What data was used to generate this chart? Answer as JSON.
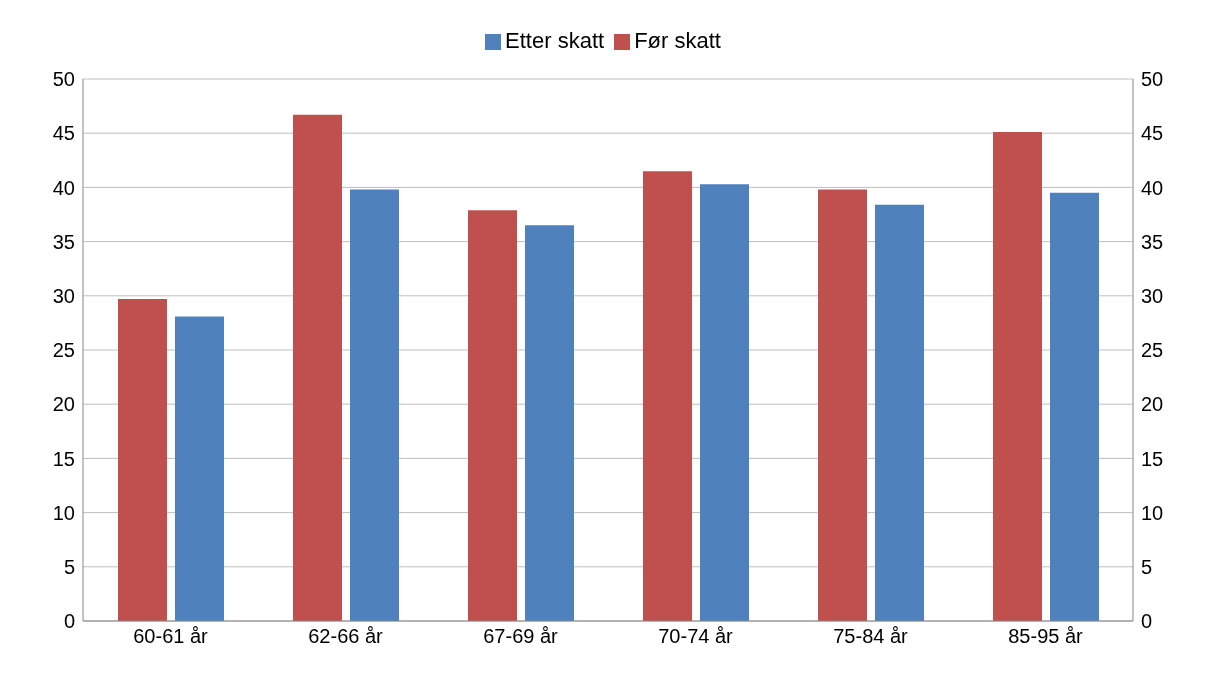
{
  "chart_data": {
    "type": "bar",
    "categories": [
      "60-61 år",
      "62-66 år",
      "67-69 år",
      "70-74 år",
      "75-84 år",
      "85-95 år"
    ],
    "series": [
      {
        "name": "Før skatt",
        "color": "#c0504d",
        "values": [
          29.7,
          46.7,
          37.9,
          41.5,
          39.8,
          45.1
        ]
      },
      {
        "name": "Etter skatt",
        "color": "#4f81bd",
        "values": [
          28.1,
          39.8,
          36.5,
          40.3,
          38.4,
          39.5
        ]
      }
    ],
    "ylim": [
      0,
      50
    ],
    "yticks": [
      0,
      5,
      10,
      15,
      20,
      25,
      30,
      35,
      40,
      45,
      50
    ],
    "y2lim": [
      0,
      50
    ],
    "y2ticks": [
      0,
      5,
      10,
      15,
      20,
      25,
      30,
      35,
      40,
      45,
      50
    ],
    "grid": "y",
    "legend": "top"
  }
}
